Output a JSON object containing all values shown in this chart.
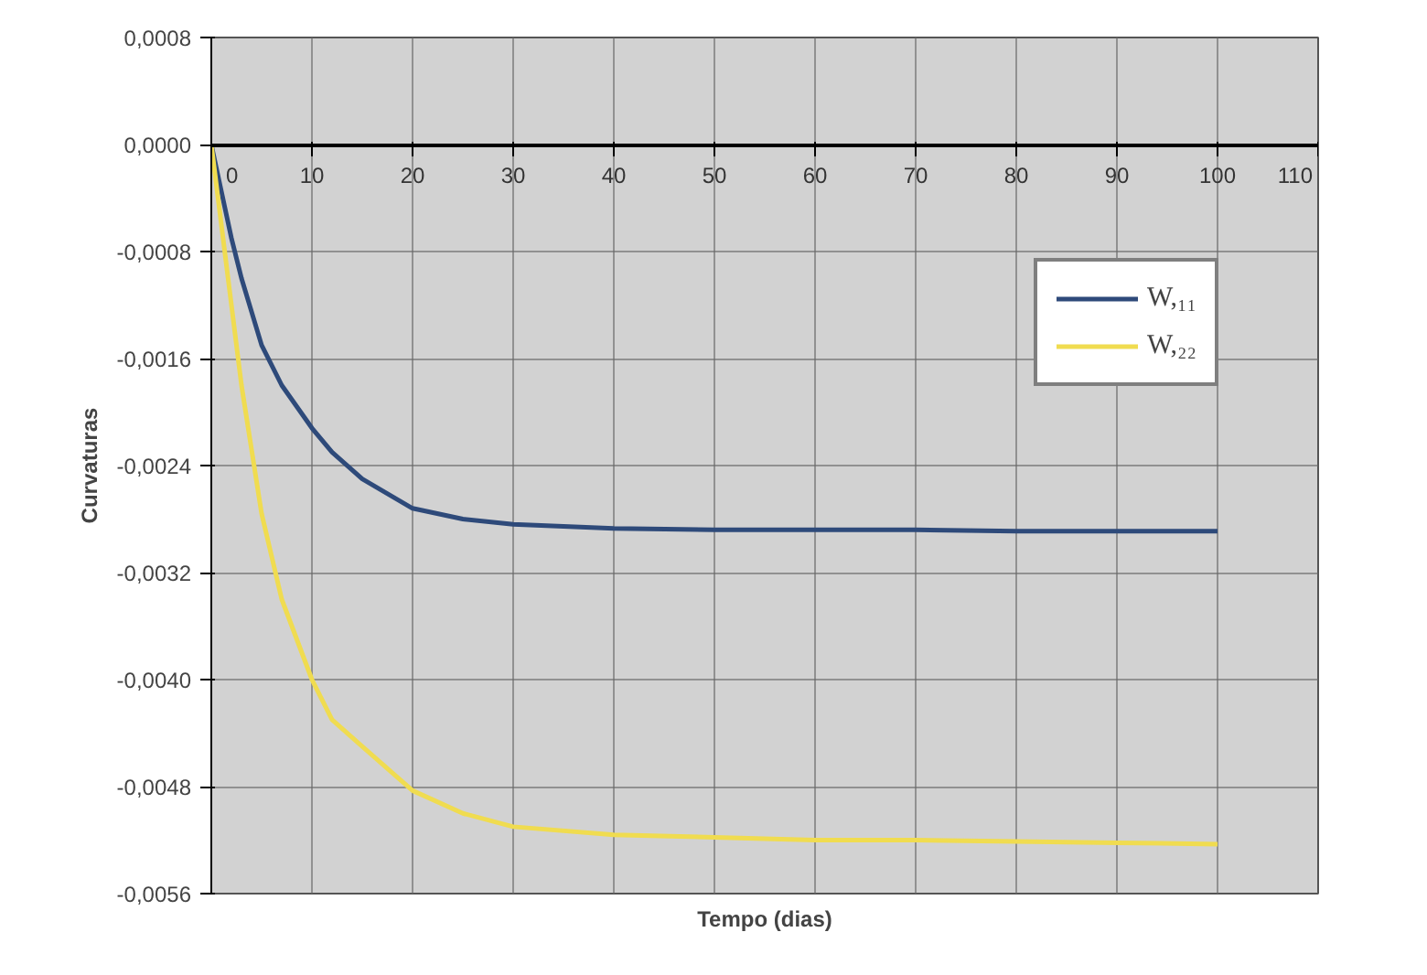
{
  "chart_data": {
    "type": "line",
    "xlabel": "Tempo (dias)",
    "ylabel": "Curvaturas",
    "x": [
      0,
      1,
      2,
      3,
      5,
      7,
      10,
      12,
      15,
      20,
      25,
      30,
      40,
      50,
      60,
      70,
      80,
      90,
      100
    ],
    "series": [
      {
        "name": "W,₁₁",
        "color": "#2e4a7a",
        "values": [
          0,
          -0.00035,
          -0.0007,
          -0.001,
          -0.0015,
          -0.0018,
          -0.00212,
          -0.0023,
          -0.0025,
          -0.00272,
          -0.0028,
          -0.00284,
          -0.00287,
          -0.00288,
          -0.00288,
          -0.00288,
          -0.00289,
          -0.00289,
          -0.00289
        ]
      },
      {
        "name": "W,₂₂",
        "color": "#f0dc50",
        "values": [
          0,
          -0.0006,
          -0.0012,
          -0.0018,
          -0.00276,
          -0.0034,
          -0.004,
          -0.0043,
          -0.0045,
          -0.00483,
          -0.005,
          -0.0051,
          -0.00516,
          -0.00518,
          -0.0052,
          -0.0052,
          -0.00521,
          -0.00522,
          -0.00523
        ]
      }
    ],
    "xlim": [
      0,
      110
    ],
    "xticks": [
      0,
      10,
      20,
      30,
      40,
      50,
      60,
      70,
      80,
      90,
      100,
      110
    ],
    "ylim": [
      -0.0056,
      0.0008
    ],
    "yticks": [
      {
        "value": 0.0008,
        "label": "0,0008"
      },
      {
        "value": 0,
        "label": "0,0000"
      },
      {
        "value": -0.0008,
        "label": "-0,0008"
      },
      {
        "value": -0.0016,
        "label": "-0,0016"
      },
      {
        "value": -0.0024,
        "label": "-0,0024"
      },
      {
        "value": -0.0032,
        "label": "-0,0032"
      },
      {
        "value": -0.004,
        "label": "-0,0040"
      },
      {
        "value": -0.0048,
        "label": "-0,0048"
      },
      {
        "value": -0.0056,
        "label": "-0,0056"
      }
    ],
    "grid": true,
    "legend": "top right",
    "marker": "none",
    "line_style": "solid"
  }
}
